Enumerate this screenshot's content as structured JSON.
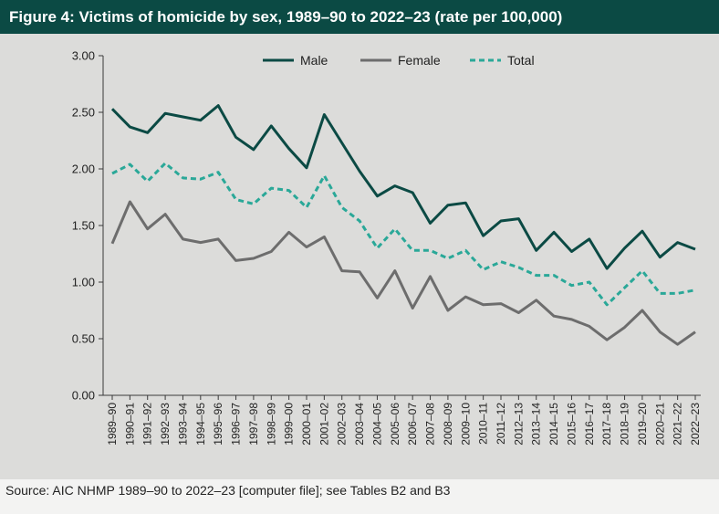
{
  "title": "Figure 4: Victims of homicide by sex, 1989–90 to 2022–23 (rate per 100,000)",
  "source": "Source: AIC NHMP 1989–90 to 2022–23 [computer file]; see Tables B2 and B3",
  "colors": {
    "male": "#0b4a44",
    "female": "#6d6d6d",
    "total": "#2aa898",
    "title_bg": "#0b4a44"
  },
  "chart_data": {
    "type": "line",
    "title": "Figure 4: Victims of homicide by sex, 1989–90 to 2022–23 (rate per 100,000)",
    "xlabel": "",
    "ylabel": "",
    "ylim": [
      0,
      3
    ],
    "yticks": [
      "0.00",
      "0.50",
      "1.00",
      "1.50",
      "2.00",
      "2.50",
      "3.00"
    ],
    "legend_position": "top-center",
    "categories": [
      "1989–90",
      "1990–91",
      "1991–92",
      "1992–93",
      "1993–94",
      "1994–95",
      "1995–96",
      "1996–97",
      "1997–98",
      "1998–99",
      "1999–00",
      "2000–01",
      "2001–02",
      "2002–03",
      "2003–04",
      "2004–05",
      "2005–06",
      "2006–07",
      "2007–08",
      "2008–09",
      "2009–10",
      "2010–11",
      "2011–12",
      "2012–13",
      "2013–14",
      "2014–15",
      "2015–16",
      "2016–17",
      "2017–18",
      "2018–19",
      "2019–20",
      "2020–21",
      "2021–22",
      "2022–23"
    ],
    "series": [
      {
        "name": "Male",
        "style": "solid",
        "values": [
          2.53,
          2.37,
          2.32,
          2.49,
          2.46,
          2.43,
          2.56,
          2.28,
          2.17,
          2.38,
          2.18,
          2.01,
          2.48,
          2.23,
          1.98,
          1.76,
          1.85,
          1.79,
          1.52,
          1.68,
          1.7,
          1.41,
          1.54,
          1.56,
          1.28,
          1.44,
          1.27,
          1.38,
          1.12,
          1.3,
          1.45,
          1.22,
          1.35,
          1.29
        ]
      },
      {
        "name": "Female",
        "style": "solid",
        "values": [
          1.34,
          1.71,
          1.47,
          1.6,
          1.38,
          1.35,
          1.38,
          1.19,
          1.21,
          1.27,
          1.44,
          1.31,
          1.4,
          1.1,
          1.09,
          0.86,
          1.1,
          0.77,
          1.05,
          0.75,
          0.87,
          0.8,
          0.81,
          0.73,
          0.84,
          0.7,
          0.67,
          0.61,
          0.49,
          0.6,
          0.75,
          0.56,
          0.45,
          0.56
        ]
      },
      {
        "name": "Total",
        "style": "dashed",
        "values": [
          1.96,
          2.04,
          1.89,
          2.05,
          1.92,
          1.91,
          1.97,
          1.73,
          1.69,
          1.83,
          1.81,
          1.66,
          1.94,
          1.66,
          1.54,
          1.3,
          1.47,
          1.28,
          1.28,
          1.21,
          1.28,
          1.11,
          1.18,
          1.13,
          1.06,
          1.06,
          0.97,
          1.0,
          0.8,
          0.95,
          1.1,
          0.9,
          0.9,
          0.93
        ]
      }
    ]
  }
}
